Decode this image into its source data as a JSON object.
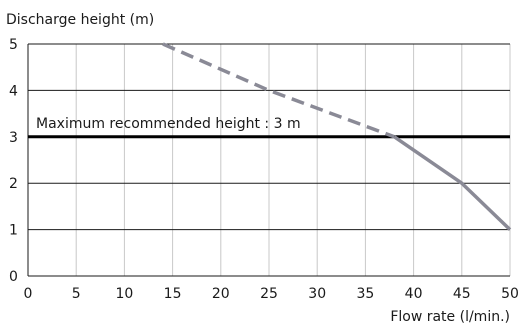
{
  "chart_data": {
    "type": "line",
    "ylabel": "Discharge height (m)",
    "xlabel": "Flow rate (l/min.)",
    "xlim": [
      0,
      50
    ],
    "ylim": [
      0,
      5
    ],
    "x_ticks": [
      0,
      5,
      10,
      15,
      20,
      25,
      30,
      35,
      40,
      45,
      50
    ],
    "y_ticks": [
      0,
      1,
      2,
      3,
      4,
      5
    ],
    "grid": true,
    "series": [
      {
        "style": "dashed",
        "color": "#8a8a96",
        "x": [
          14,
          25,
          38
        ],
        "y": [
          5,
          4,
          3
        ]
      },
      {
        "style": "solid",
        "color": "#8a8a96",
        "x": [
          38,
          45,
          50
        ],
        "y": [
          3,
          2,
          1
        ]
      }
    ],
    "reference_line": {
      "y": 3,
      "label": "Maximum recommended height : 3 m",
      "color": "#000000"
    }
  }
}
